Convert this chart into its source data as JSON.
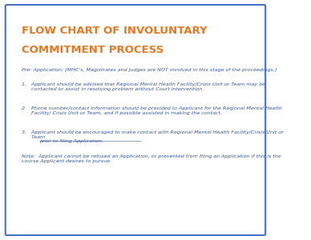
{
  "title_line1": "FLOW CHART OF INVOLUNTARY",
  "title_line2": "COMMITMENT PROCESS",
  "title_color": "#E87722",
  "body_color": "#3B5998",
  "pre_app_text": "Pre- Application: [MHC's, Magistrates and Judges are NOT involved in this stage of the proceedings.]",
  "item1": "1.   Applicant should be advised that Regional Mental Health Facility/Crisis Unit or Team may be\n      contacted to assist in resolving problem without Court intervention.",
  "item2": "2.   Phone number/contact information should be provided to Applicant for the Regional Mental Health\n      Facility/ Crisis Unit or Team, and if possible assisted in making the contact.",
  "item3_part1": "3.   Applicant should be encouraged to make contact with Regional Mental Health Facility/Crisis Unit or\n      Team ",
  "item3_underline": "prior to filing Application.",
  "note_text": "Note:  Applicant cannot be refused an Application, or prevented from filing an Application if this is the\ncourse Applicant desires to pursue.",
  "background_color": "#FFFFFF",
  "border_color": "#4472C4",
  "title_fontsize": 9.5,
  "body_fontsize": 4.6
}
